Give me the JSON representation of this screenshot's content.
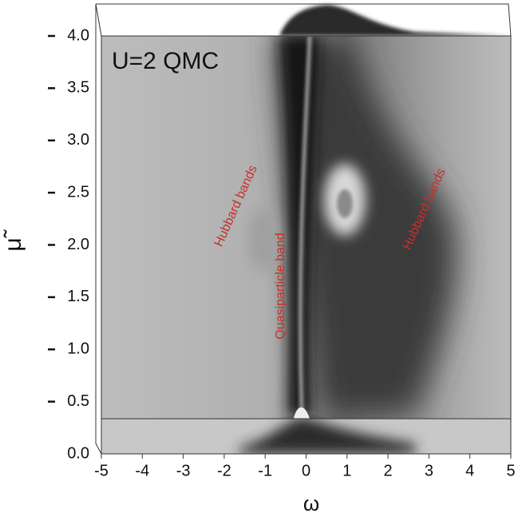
{
  "chart_data": {
    "type": "surface",
    "title": "U=2 QMC",
    "xlabel": "ω",
    "ylabel": "μ̃",
    "annotations": [
      "Hubbard bands",
      "Quasiparticle band",
      "Hubbard bands"
    ],
    "xlim": [
      -5,
      5
    ],
    "xticks": [
      -5,
      -4,
      -3,
      -2,
      -1,
      0,
      1,
      2,
      3,
      4,
      5
    ],
    "ylim": [
      0,
      4
    ],
    "yticks": [
      {
        "value": 0,
        "label": "0.0"
      },
      {
        "value": 0.5,
        "label": "0.5"
      },
      {
        "value": 1,
        "label": "1.0"
      },
      {
        "value": 1.5,
        "label": "1.5"
      },
      {
        "value": 2,
        "label": "2.0"
      },
      {
        "value": 2.5,
        "label": "2.5"
      },
      {
        "value": 3,
        "label": "3.0"
      },
      {
        "value": 3.5,
        "label": "3.5"
      },
      {
        "value": 4,
        "label": "4.0"
      }
    ]
  }
}
